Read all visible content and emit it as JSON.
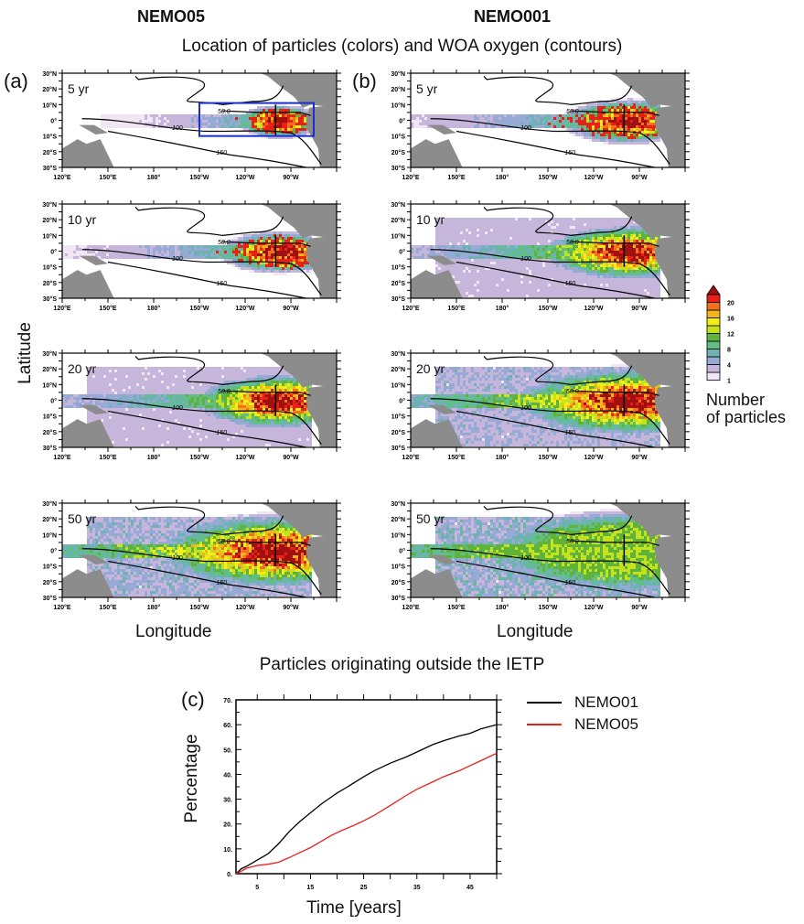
{
  "figure": {
    "column_headers": [
      "NEMO05",
      "NEMO001"
    ],
    "main_title": "Location of particles (colors) and WOA oxygen (contours)",
    "panel_labels": {
      "a": "(a)",
      "b": "(b)",
      "c": "(c)"
    },
    "map_ylabel": "Latitude",
    "map_xlabel": "Longitude",
    "lat_ticks": [
      "30°N",
      "20°N",
      "10°N",
      "0°",
      "10°S",
      "20°S",
      "30°S"
    ],
    "lon_ticks": [
      "120°E",
      "150°E",
      "180°",
      "150°W",
      "120°W",
      "90°W"
    ],
    "contour_labels": [
      "50.0",
      "100",
      "150"
    ],
    "time_labels": [
      "5 yr",
      "10 yr",
      "20 yr",
      "50 yr"
    ],
    "colors": {
      "land": "#8c8c8c",
      "box": "#1a2fd0",
      "contour": "#000000"
    }
  },
  "colorbar": {
    "label_line1": "Number",
    "label_line2": "of particles",
    "tick_labels": [
      "1",
      "4",
      "8",
      "12",
      "16",
      "20"
    ],
    "colors": [
      "#f0e6f4",
      "#c6b6dc",
      "#97aad6",
      "#6fb2b4",
      "#5fbf86",
      "#5fb23a",
      "#c4e21e",
      "#f2ee1a",
      "#f5b41a",
      "#f5701a",
      "#e8201a",
      "#a01010"
    ]
  },
  "chart_data": {
    "type": "line",
    "title": "Particles originating outside the IETP",
    "xlabel": "Time [years]",
    "ylabel": "Percentage",
    "xlim": [
      1,
      50
    ],
    "ylim": [
      0,
      70
    ],
    "x_ticks": [
      5,
      15,
      25,
      35,
      45
    ],
    "y_ticks": [
      "0.",
      "10.",
      "20.",
      "30.",
      "40.",
      "50.",
      "60.",
      "70."
    ],
    "grid": false,
    "legend_position": "right",
    "series": [
      {
        "name": "NEMO01",
        "color": "#000000",
        "x": [
          1,
          2,
          3,
          5,
          7,
          9,
          11,
          13,
          15,
          17,
          19,
          20,
          22,
          25,
          27,
          30,
          33,
          35,
          38,
          40,
          43,
          45,
          47,
          50
        ],
        "y": [
          0,
          2,
          3,
          5.5,
          8,
          12,
          17,
          21,
          24.5,
          28,
          31,
          32.5,
          35,
          39,
          41.5,
          44.5,
          47,
          49,
          52,
          53.5,
          55.5,
          56.5,
          58.3,
          60
        ]
      },
      {
        "name": "NEMO05",
        "color": "#e8201a",
        "x": [
          1,
          2,
          3,
          5,
          7,
          9,
          11,
          13,
          15,
          17,
          19,
          21,
          23,
          25,
          27,
          30,
          33,
          35,
          38,
          40,
          43,
          45,
          47,
          50
        ],
        "y": [
          0,
          1,
          2.2,
          3.3,
          3.8,
          4.6,
          6.5,
          8.5,
          10.5,
          13,
          15.5,
          17.5,
          19.3,
          21.3,
          23.5,
          27.5,
          31.5,
          34,
          37,
          39,
          41.5,
          43.5,
          45.5,
          48.5
        ]
      }
    ]
  }
}
